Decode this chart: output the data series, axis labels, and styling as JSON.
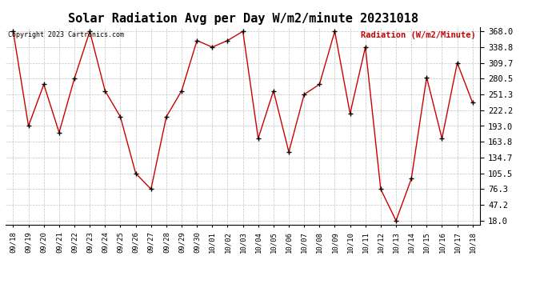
{
  "title": "Solar Radiation Avg per Day W/m2/minute 20231018",
  "copyright": "Copyright 2023 Cartronics.com",
  "legend_label": "Radiation (W/m2/Minute)",
  "labels": [
    "09/18",
    "09/19",
    "09/20",
    "09/21",
    "09/22",
    "09/23",
    "09/24",
    "09/25",
    "09/26",
    "09/27",
    "09/28",
    "09/29",
    "09/30",
    "10/01",
    "10/02",
    "10/03",
    "10/04",
    "10/05",
    "10/06",
    "10/07",
    "10/08",
    "10/09",
    "10/10",
    "10/11",
    "10/12",
    "10/13",
    "10/14",
    "10/15",
    "10/16",
    "10/17",
    "10/18"
  ],
  "values": [
    368.0,
    193.0,
    270.0,
    181.0,
    281.0,
    368.0,
    258.0,
    210.0,
    105.5,
    76.3,
    210.0,
    258.0,
    351.0,
    338.8,
    351.0,
    368.0,
    170.0,
    258.0,
    145.0,
    251.3,
    270.0,
    368.0,
    216.0,
    338.8,
    76.3,
    18.0,
    95.5,
    283.0,
    170.0,
    309.7,
    236.0
  ],
  "ymin": 18.0,
  "ymax": 368.0,
  "yticks": [
    18.0,
    47.2,
    76.3,
    105.5,
    134.7,
    163.8,
    193.0,
    222.2,
    251.3,
    280.5,
    309.7,
    338.8,
    368.0
  ],
  "line_color": "#cc0000",
  "marker_color": "#000000",
  "bg_color": "#ffffff",
  "grid_color": "#bbbbbb",
  "title_fontsize": 11,
  "label_fontsize": 6.5,
  "ytick_fontsize": 7.5,
  "legend_color": "#cc0000",
  "copyright_color": "#000000",
  "copyright_fontsize": 6
}
